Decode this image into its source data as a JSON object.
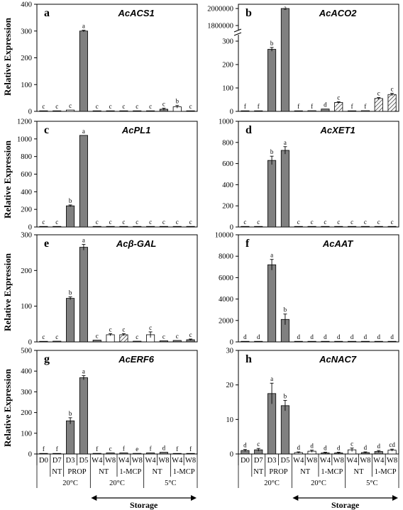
{
  "ylabel": "Relative Expression",
  "colors": {
    "grey": "#808080",
    "white": "#ffffff",
    "hatch": "#404040",
    "axis": "#000000"
  },
  "x_axis": {
    "samples": [
      "D0",
      "D7",
      "D3",
      "D5",
      "W4",
      "W8",
      "W4",
      "W8",
      "W4",
      "W8",
      "W4",
      "W8"
    ],
    "treat_groups": [
      {
        "label": "NT",
        "from": 1,
        "to": 1
      },
      {
        "label": "PROP",
        "from": 2,
        "to": 3
      },
      {
        "label": "NT",
        "from": 4,
        "to": 5
      },
      {
        "label": "1-MCP",
        "from": 6,
        "to": 7
      },
      {
        "label": "NT",
        "from": 8,
        "to": 9
      },
      {
        "label": "1-MCP",
        "from": 10,
        "to": 11
      }
    ],
    "temp_groups": [
      {
        "label": "20°C",
        "from": 1,
        "to": 3
      },
      {
        "label": "20°C",
        "from": 4,
        "to": 7
      },
      {
        "label": "5°C",
        "from": 8,
        "to": 11
      }
    ],
    "storage_label": "Storage"
  },
  "chart_data": [
    {
      "type": "bar",
      "letter": "a",
      "title": "AcACS1",
      "yticks": [
        "0",
        "100",
        "200",
        "300",
        "400"
      ],
      "ylim": [
        0,
        400
      ],
      "styles": [
        "w",
        "g",
        "w",
        "g",
        "g",
        "g",
        "w",
        "w",
        "g",
        "g",
        "w",
        "w"
      ],
      "values": [
        1,
        1,
        5,
        300,
        2,
        2,
        1,
        1,
        2,
        8,
        17,
        1
      ],
      "errors": [
        0.5,
        0.5,
        1,
        3,
        0.5,
        0.5,
        0.5,
        0.5,
        0.5,
        4,
        5,
        0.5
      ],
      "sig": [
        "c",
        "c",
        "c",
        "a",
        "c",
        "c",
        "c",
        "c",
        "c",
        "c",
        "b",
        "c"
      ]
    },
    {
      "type": "bar",
      "letter": "b",
      "title": "AcACO2",
      "broken": true,
      "break_value": 310,
      "upper_value": 2000000,
      "yticks": [
        "0",
        "100",
        "200",
        "300",
        "1800000",
        "2000000"
      ],
      "ylim": [
        0,
        300
      ],
      "styles": [
        "w",
        "w",
        "g",
        "g",
        "w",
        "w",
        "g",
        "h",
        "w",
        "w",
        "h",
        "h"
      ],
      "values": [
        1,
        1,
        265,
        2000000,
        2,
        3,
        10,
        38,
        2,
        3,
        55,
        72
      ],
      "errors": [
        0.5,
        0.5,
        8,
        0,
        0.5,
        1,
        2,
        3,
        0.5,
        1,
        4,
        5
      ],
      "sig": [
        "f",
        "f",
        "b",
        "a",
        "f",
        "f",
        "d",
        "c",
        "f",
        "f",
        "c",
        "c"
      ]
    },
    {
      "type": "bar",
      "letter": "c",
      "title": "AcPL1",
      "yticks": [
        "0",
        "200",
        "400",
        "600",
        "800",
        "1000",
        "1200"
      ],
      "ylim": [
        0,
        1200
      ],
      "styles": [
        "w",
        "w",
        "g",
        "g",
        "w",
        "w",
        "w",
        "w",
        "w",
        "w",
        "w",
        "w"
      ],
      "values": [
        1,
        1,
        240,
        1040,
        2,
        2,
        5,
        1,
        2,
        1,
        1,
        1
      ],
      "errors": [
        0.5,
        0.5,
        10,
        5,
        0.5,
        0.5,
        1,
        0.5,
        0.5,
        0.5,
        0.5,
        0.5
      ],
      "sig": [
        "c",
        "c",
        "b",
        "a",
        "c",
        "c",
        "c",
        "c",
        "c",
        "c",
        "c",
        "c"
      ]
    },
    {
      "type": "bar",
      "letter": "d",
      "title": "AcXET1",
      "yticks": [
        "0",
        "200",
        "400",
        "600",
        "800",
        "1000"
      ],
      "ylim": [
        0,
        1000
      ],
      "styles": [
        "w",
        "w",
        "g",
        "g",
        "w",
        "w",
        "w",
        "w",
        "w",
        "w",
        "w",
        "w"
      ],
      "values": [
        1,
        1,
        630,
        725,
        1,
        1,
        1,
        1,
        1,
        1,
        1,
        1
      ],
      "errors": [
        0.5,
        0.5,
        40,
        35,
        0.5,
        0.5,
        0.5,
        0.5,
        0.5,
        0.5,
        0.5,
        0.5
      ],
      "sig": [
        "c",
        "c",
        "b",
        "a",
        "c",
        "c",
        "c",
        "c",
        "c",
        "c",
        "c",
        "c"
      ]
    },
    {
      "type": "bar",
      "letter": "e",
      "title": "Acβ-GAL",
      "yticks": [
        "0",
        "100",
        "200",
        "300"
      ],
      "ylim": [
        0,
        300
      ],
      "styles": [
        "w",
        "g",
        "g",
        "g",
        "g",
        "w",
        "h",
        "g",
        "w",
        "g",
        "g",
        "g"
      ],
      "values": [
        1,
        2,
        122,
        265,
        5,
        20,
        20,
        2,
        20,
        3,
        4,
        6
      ],
      "errors": [
        0.5,
        1,
        4,
        8,
        1,
        3,
        3,
        1,
        8,
        1,
        1,
        2
      ],
      "sig": [
        "c",
        "c",
        "b",
        "a",
        "c",
        "c",
        "c",
        "c",
        "c",
        "c",
        "c",
        "c"
      ]
    },
    {
      "type": "bar",
      "letter": "f",
      "title": "AcAAT",
      "yticks": [
        "0",
        "2000",
        "4000",
        "6000",
        "8000",
        "10000"
      ],
      "ylim": [
        0,
        10000
      ],
      "styles": [
        "w",
        "w",
        "g",
        "g",
        "w",
        "w",
        "w",
        "w",
        "w",
        "w",
        "w",
        "w"
      ],
      "values": [
        1,
        1,
        7200,
        2100,
        1,
        1,
        20,
        1,
        1,
        1,
        1,
        1
      ],
      "errors": [
        0.5,
        0.5,
        500,
        500,
        0.5,
        0.5,
        5,
        0.5,
        0.5,
        0.5,
        0.5,
        0.5
      ],
      "sig": [
        "d",
        "d",
        "a",
        "b",
        "d",
        "d",
        "d",
        "d",
        "d",
        "d",
        "d",
        "d"
      ]
    },
    {
      "type": "bar",
      "letter": "g",
      "title": "AcERF6",
      "yticks": [
        "0",
        "100",
        "200",
        "300",
        "400",
        "500"
      ],
      "ylim": [
        0,
        500
      ],
      "styles": [
        "w",
        "w",
        "g",
        "g",
        "g",
        "g",
        "g",
        "w",
        "g",
        "g",
        "g",
        "g"
      ],
      "values": [
        1,
        1,
        160,
        368,
        3,
        5,
        5,
        3,
        5,
        8,
        2,
        2
      ],
      "errors": [
        0.5,
        0.5,
        15,
        10,
        1,
        2,
        1,
        1,
        1,
        2,
        1,
        1
      ],
      "sig": [
        "f",
        "f",
        "b",
        "a",
        "f",
        "c",
        "f",
        "e",
        "f",
        "d",
        "f",
        "f"
      ]
    },
    {
      "type": "bar",
      "letter": "h",
      "title": "AcNAC7",
      "yticks": [
        "0",
        "10",
        "20",
        "30"
      ],
      "ylim": [
        0,
        30
      ],
      "styles": [
        "g",
        "g",
        "g",
        "g",
        "w",
        "w",
        "g",
        "g",
        "w",
        "g",
        "g",
        "w"
      ],
      "values": [
        1,
        1.2,
        17.5,
        14,
        0.4,
        0.8,
        0.3,
        0.3,
        1.2,
        0.4,
        0.7,
        1.1
      ],
      "errors": [
        0.3,
        0.4,
        3,
        1.5,
        0.2,
        0.3,
        0.2,
        0.2,
        0.5,
        0.2,
        0.3,
        0.3
      ],
      "sig": [
        "d",
        "c",
        "a",
        "b",
        "d",
        "d",
        "d",
        "d",
        "c",
        "d",
        "d",
        "cd"
      ]
    }
  ]
}
